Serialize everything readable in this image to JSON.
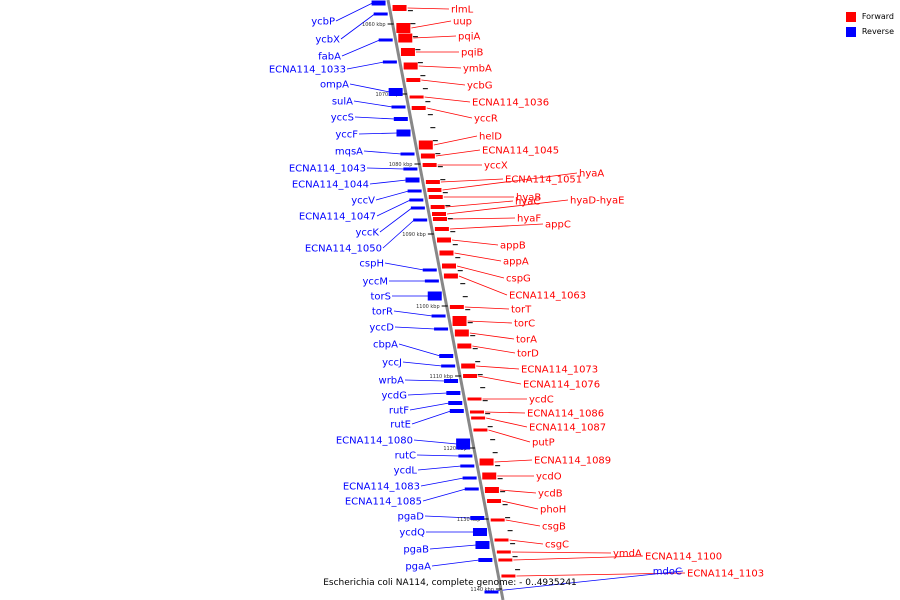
{
  "title": "Escherichia coli NA114, complete genome: - 0..4935241",
  "legend": [
    {
      "label": "Forward",
      "color": "#ff0000"
    },
    {
      "label": "Reverse",
      "color": "#0000ff"
    }
  ],
  "colors": {
    "forward": "#ff0000",
    "reverse": "#0000ff",
    "backbone": "#888888"
  },
  "scale_labels": [
    "1060 kbp",
    "1070 kbp",
    "1080 kbp",
    "1090 kbp",
    "1100 kbp",
    "1110 kbp",
    "1120 kbp",
    "1130 kbp",
    "1140 kbp"
  ],
  "forward_genes": [
    "rlmL",
    "uup",
    "pqiA",
    "pqiB",
    "ymbA",
    "ycbG",
    "ECNA114_1036",
    "yccR",
    "helD",
    "ECNA114_1045",
    "yccX",
    "ECNA114_1051",
    "hyaA",
    "hyaB",
    "hyaC",
    "hyaD-hyaE",
    "hyaF",
    "appC",
    "appB",
    "appA",
    "cspG",
    "ECNA114_1063",
    "torT",
    "torC",
    "torA",
    "torD",
    "ECNA114_1073",
    "ECNA114_1076",
    "ycdC",
    "ECNA114_1086",
    "ECNA114_1087",
    "putP",
    "ECNA114_1089",
    "ycdO",
    "ycdB",
    "phoH",
    "csgB",
    "csgC",
    "ymdA",
    "ECNA114_1100",
    "ECNA114_1103"
  ],
  "reverse_genes": [
    "ycbP",
    "ycbX",
    "fabA",
    "ECNA114_1033",
    "ompA",
    "sulA",
    "yccS",
    "yccF",
    "mqsA",
    "ECNA114_1043",
    "ECNA114_1044",
    "yccV",
    "ECNA114_1047",
    "yccK",
    "ECNA114_1050",
    "cspH",
    "yccM",
    "torS",
    "torR",
    "yccD",
    "cbpA",
    "yccJ",
    "wrbA",
    "ycdG",
    "rutF",
    "rutE",
    "ECNA114_1080",
    "rutC",
    "ycdL",
    "ECNA114_1083",
    "ECNA114_1085",
    "pgaD",
    "ycdQ",
    "pgaB",
    "pgaA",
    "mdoC"
  ]
}
